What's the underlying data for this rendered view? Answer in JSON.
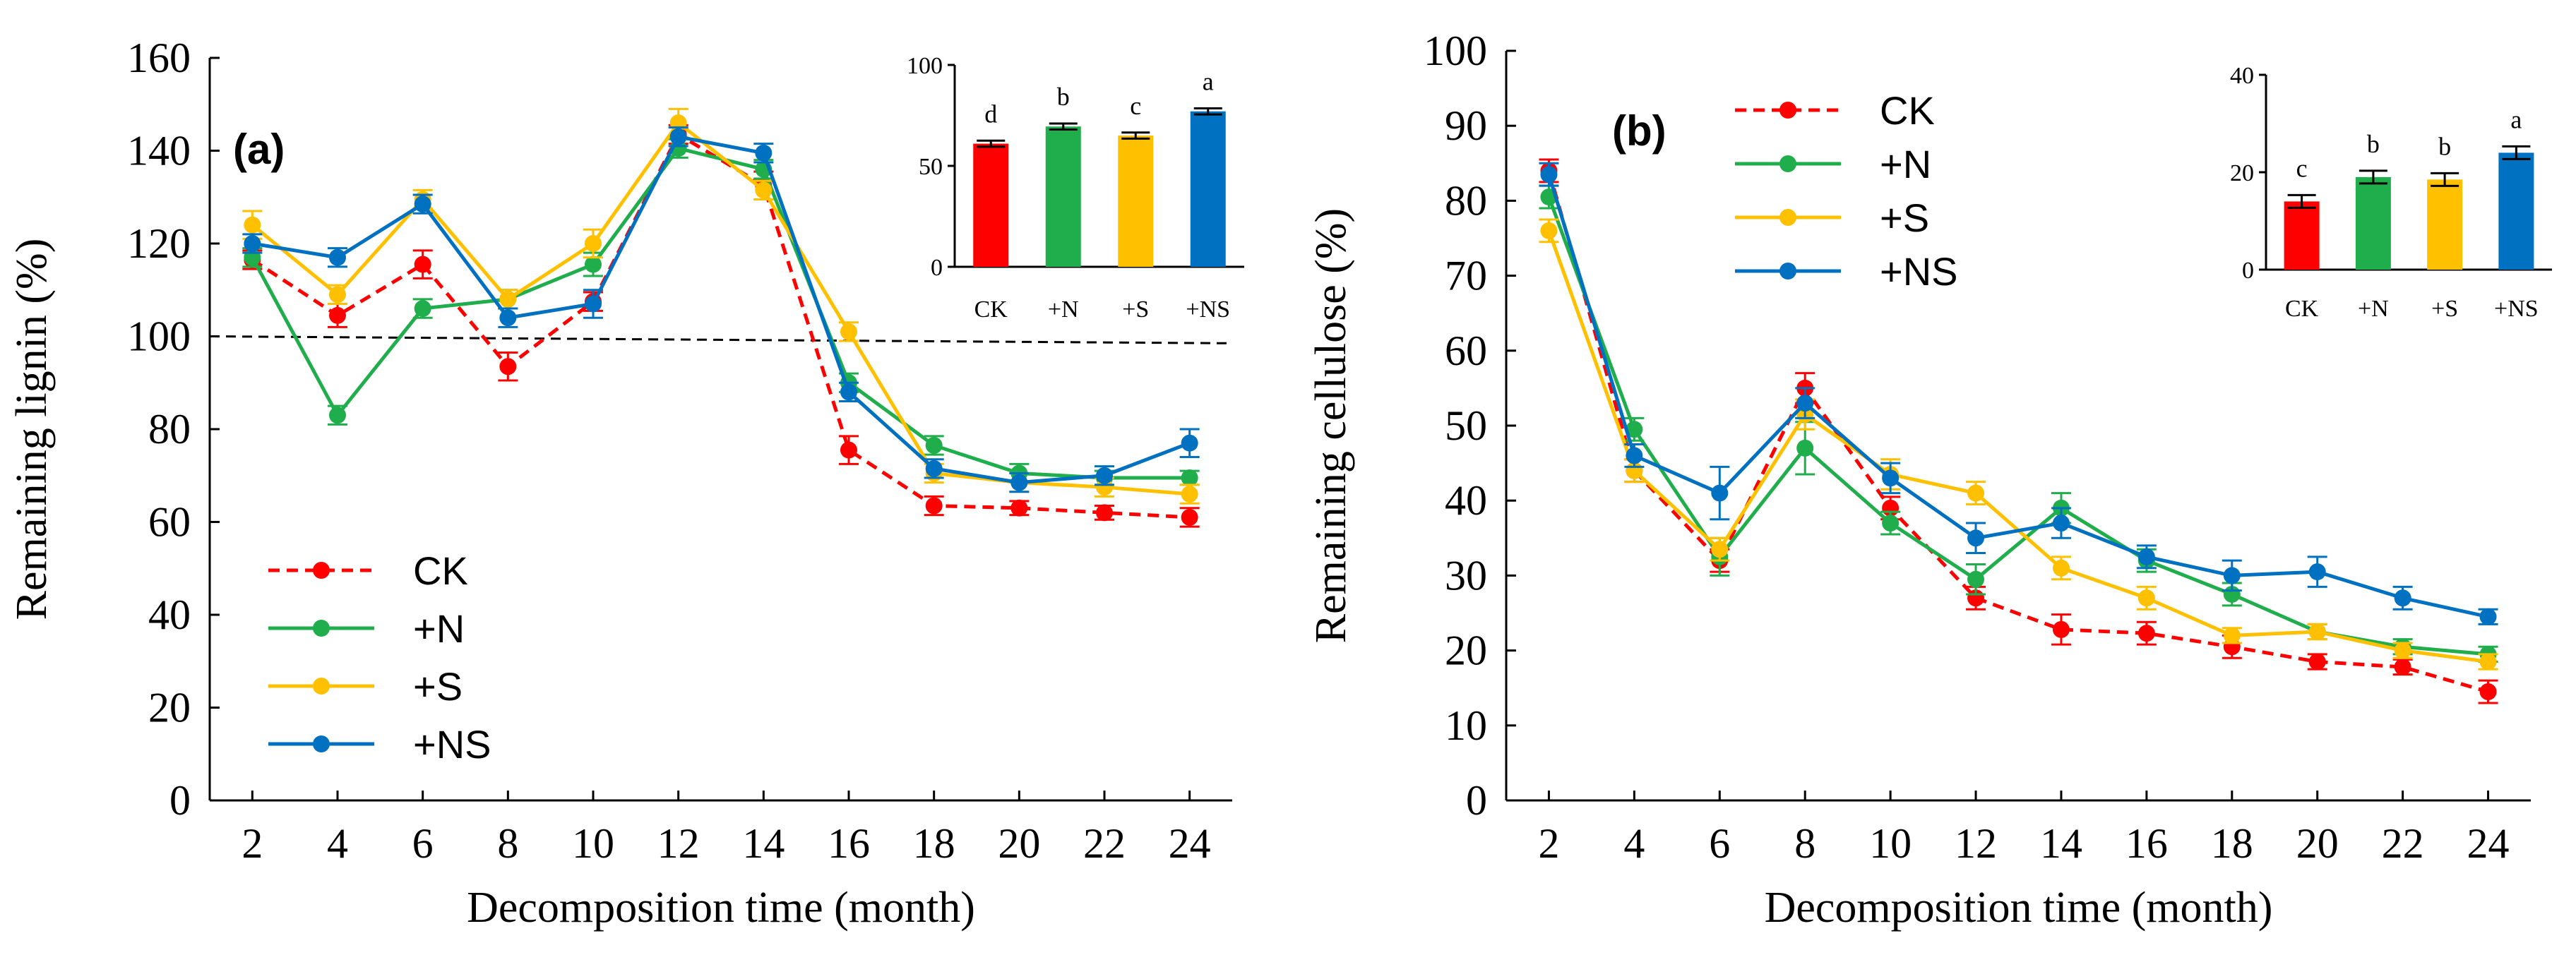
{
  "figure": {
    "colors": {
      "CK": "#ff0000",
      "+N": "#1fae4b",
      "+S": "#ffc000",
      "+NS": "#0070c0"
    }
  },
  "chart_data": [
    {
      "type": "line",
      "panel_label": "(a)",
      "title": "",
      "xlabel": "Decomposition time (month)",
      "ylabel": "Remaining lignin (%)",
      "x": [
        2,
        4,
        6,
        8,
        10,
        12,
        14,
        16,
        18,
        20,
        22,
        24
      ],
      "x_ticks": [
        "2",
        "4",
        "6",
        "8",
        "10",
        "12",
        "14",
        "16",
        "18",
        "20",
        "22",
        "24"
      ],
      "xlim": [
        1,
        25
      ],
      "ylim": [
        0,
        160
      ],
      "y_ticks": [
        "0",
        "20",
        "40",
        "60",
        "80",
        "100",
        "120",
        "140",
        "160"
      ],
      "grid": false,
      "reference_line": {
        "y_start": 100,
        "y_end": 98.5,
        "style": "dashed"
      },
      "legend_position": "bottom-left",
      "series": [
        {
          "name": "CK",
          "dashed": true,
          "values": [
            116.5,
            104.5,
            115.5,
            93.5,
            107.5,
            143.5,
            132.5,
            75.5,
            63.5,
            63,
            62,
            61
          ],
          "errors": [
            2,
            2.5,
            3,
            3,
            2,
            2,
            3,
            3,
            2,
            1.5,
            1.5,
            2
          ]
        },
        {
          "name": "+N",
          "dashed": false,
          "values": [
            117,
            83,
            106,
            108,
            115.5,
            140.5,
            136,
            90,
            76.5,
            70.5,
            69.5,
            69.5
          ],
          "errors": [
            2,
            2,
            2,
            2,
            2.5,
            2,
            2,
            2,
            2,
            2,
            1.5,
            1.5
          ]
        },
        {
          "name": "+S",
          "dashed": false,
          "values": [
            124,
            109,
            129.5,
            108,
            120,
            146,
            131.5,
            101,
            70.5,
            68.5,
            67.5,
            66
          ],
          "errors": [
            3,
            2,
            2,
            2,
            3,
            3,
            2,
            2,
            2,
            2,
            2,
            2
          ]
        },
        {
          "name": "+NS",
          "dashed": false,
          "values": [
            120,
            117,
            128.5,
            104,
            107,
            143,
            139.5,
            88,
            71.5,
            68.5,
            70,
            77
          ],
          "errors": [
            2,
            2,
            2,
            2,
            3,
            2,
            2,
            2,
            2,
            2,
            2,
            3
          ]
        }
      ],
      "inset": {
        "type": "bar",
        "categories": [
          "CK",
          "+N",
          "+S",
          "+NS"
        ],
        "values": [
          61,
          69.5,
          65,
          77
        ],
        "errors": [
          1.5,
          1.5,
          1.5,
          1.5
        ],
        "letters": [
          "d",
          "b",
          "c",
          "a"
        ],
        "ylim": [
          0,
          100
        ],
        "y_ticks": [
          "0",
          "50",
          "100"
        ]
      }
    },
    {
      "type": "line",
      "panel_label": "(b)",
      "title": "",
      "xlabel": "Decomposition time (month)",
      "ylabel": "Remaining cellulose (%)",
      "x": [
        2,
        4,
        6,
        8,
        10,
        12,
        14,
        16,
        18,
        20,
        22,
        24
      ],
      "x_ticks": [
        "2",
        "4",
        "6",
        "8",
        "10",
        "12",
        "14",
        "16",
        "18",
        "20",
        "22",
        "24"
      ],
      "xlim": [
        1,
        25
      ],
      "ylim": [
        0,
        100
      ],
      "y_ticks": [
        "0",
        "10",
        "20",
        "30",
        "40",
        "50",
        "60",
        "70",
        "80",
        "90",
        "100"
      ],
      "grid": false,
      "legend_position": "top-left",
      "series": [
        {
          "name": "CK",
          "dashed": true,
          "values": [
            84,
            44,
            32,
            55,
            39,
            27,
            22.8,
            22.3,
            20.5,
            18.5,
            17.8,
            14.5
          ],
          "errors": [
            1.5,
            1.5,
            1.5,
            2,
            1.5,
            1.5,
            2,
            1.5,
            1.5,
            1,
            1,
            1.5
          ]
        },
        {
          "name": "+N",
          "dashed": false,
          "values": [
            80.5,
            49.5,
            32.5,
            47,
            37,
            29.5,
            39,
            32,
            27.5,
            22.5,
            20.5,
            19.5
          ],
          "errors": [
            1.5,
            1.5,
            2.5,
            3.5,
            1.5,
            2,
            2,
            1.5,
            1.5,
            1,
            1,
            1
          ]
        },
        {
          "name": "+S",
          "dashed": false,
          "values": [
            76,
            44,
            33.5,
            51.5,
            43.5,
            41,
            31,
            27,
            22,
            22.5,
            20,
            18.5
          ],
          "errors": [
            1.5,
            1.5,
            1.5,
            2,
            2,
            1.5,
            1.5,
            1.5,
            1,
            1,
            1,
            1
          ]
        },
        {
          "name": "+NS",
          "dashed": false,
          "values": [
            83.5,
            46,
            41,
            53,
            43,
            35,
            37,
            32.5,
            30,
            30.5,
            27,
            24.5
          ],
          "errors": [
            1.5,
            1.5,
            3.5,
            2,
            2,
            2,
            2,
            1.5,
            2,
            2,
            1.5,
            1
          ]
        }
      ],
      "inset": {
        "type": "bar",
        "categories": [
          "CK",
          "+N",
          "+S",
          "+NS"
        ],
        "values": [
          14,
          19,
          18.5,
          24
        ],
        "errors": [
          1.3,
          1.3,
          1.3,
          1.3
        ],
        "letters": [
          "c",
          "b",
          "b",
          "a"
        ],
        "ylim": [
          0,
          40
        ],
        "y_ticks": [
          "0",
          "20",
          "40"
        ]
      }
    }
  ]
}
